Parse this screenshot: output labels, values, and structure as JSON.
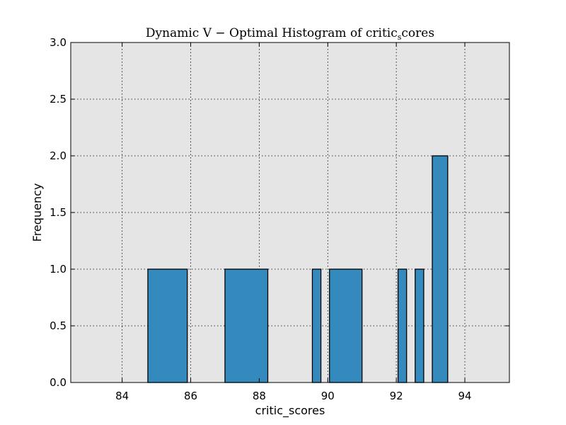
{
  "chart_data": {
    "type": "bar",
    "title_main": "Dynamic V − Optimal Histogram of critic",
    "title_sub": "s",
    "title_tail": "cores",
    "xlabel": "critic_scores",
    "ylabel": "Frequency",
    "xlim": [
      82.5,
      95.3
    ],
    "ylim": [
      0,
      3.0
    ],
    "xticks": [
      84,
      86,
      88,
      90,
      92,
      94
    ],
    "yticks": [
      0.0,
      0.5,
      1.0,
      1.5,
      2.0,
      2.5,
      3.0
    ],
    "xtick_labels": [
      "84",
      "86",
      "88",
      "90",
      "92",
      "94"
    ],
    "ytick_labels": [
      "0.0",
      "0.5",
      "1.0",
      "1.5",
      "2.0",
      "2.5",
      "3.0"
    ],
    "grid": true,
    "bars": [
      {
        "x0": 84.75,
        "x1": 85.9,
        "value": 1
      },
      {
        "x0": 87.0,
        "x1": 88.25,
        "value": 1
      },
      {
        "x0": 89.55,
        "x1": 89.8,
        "value": 1
      },
      {
        "x0": 90.05,
        "x1": 91.0,
        "value": 1
      },
      {
        "x0": 92.05,
        "x1": 92.3,
        "value": 1
      },
      {
        "x0": 92.55,
        "x1": 92.8,
        "value": 1
      },
      {
        "x0": 93.05,
        "x1": 93.5,
        "value": 2
      }
    ],
    "colors": {
      "bar": "#348ABD",
      "plot_bg": "#E5E5E5"
    }
  }
}
